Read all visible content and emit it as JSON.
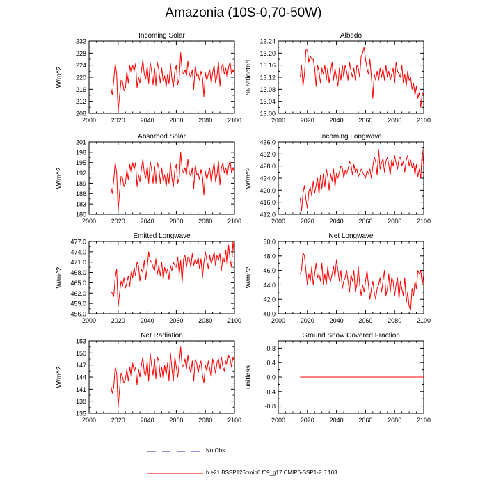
{
  "title": "Amazonia (10S-0,70-50W)",
  "legend": {
    "obs_label": "No Obs",
    "model_label": "b.e21.BSSP126cmip6.f09_g17.CMIP6-SSP1-2.6.103",
    "obs_color": "#2222aa",
    "model_color": "#ff0000"
  },
  "chart_data": [
    {
      "type": "line",
      "title": "Incoming Solar",
      "ylabel": "W/m^2",
      "xlim": [
        2000,
        2100
      ],
      "ylim": [
        208,
        232
      ],
      "xticks": [
        "2000",
        "2020",
        "2040",
        "2060",
        "2080",
        "2100"
      ],
      "yticks": [
        "232",
        "228",
        "224",
        "220",
        "216",
        "212",
        "208"
      ],
      "x_start": 2015,
      "values": [
        216.5,
        214.2,
        219.0,
        224.5,
        221.0,
        208.5,
        214.0,
        219.0,
        218.5,
        215.5,
        216.5,
        222.0,
        218.0,
        223.8,
        221.5,
        224.0,
        222.0,
        224.5,
        216.5,
        220.0,
        218.0,
        222.0,
        225.8,
        221.0,
        219.5,
        223.5,
        217.8,
        225.0,
        222.0,
        217.5,
        223.0,
        217.2,
        225.0,
        222.5,
        218.0,
        223.0,
        218.5,
        220.5,
        216.8,
        221.0,
        217.8,
        224.5,
        219.5,
        216.8,
        222.0,
        224.0,
        217.5,
        219.5,
        228.2,
        222.0,
        221.0,
        222.5,
        220.5,
        225.5,
        221.0,
        220.0,
        222.5,
        216.0,
        224.0,
        220.5,
        221.0,
        219.0,
        222.0,
        220.0,
        213.5,
        221.5,
        219.0,
        221.0,
        222.5,
        218.0,
        221.5,
        224.0,
        218.0,
        220.5,
        225.0,
        217.0,
        223.0,
        224.5,
        221.0,
        223.0,
        219.8,
        223.5,
        225.0,
        221.0,
        222.5,
        221.0
      ]
    },
    {
      "type": "line",
      "title": "Albedo",
      "ylabel": "% reflected",
      "xlim": [
        2000,
        2100
      ],
      "ylim": [
        13.0,
        13.24
      ],
      "xticks": [
        "2000",
        "2020",
        "2040",
        "2060",
        "2080",
        "2100"
      ],
      "yticks": [
        "13.24",
        "13.20",
        "13.16",
        "13.12",
        "13.08",
        "13.04",
        "13.00"
      ],
      "x_start": 2015,
      "values": [
        13.12,
        13.16,
        13.09,
        13.13,
        13.21,
        13.21,
        13.17,
        13.19,
        13.18,
        13.18,
        13.15,
        13.09,
        13.16,
        13.14,
        13.1,
        13.15,
        13.13,
        13.16,
        13.11,
        13.15,
        13.1,
        13.14,
        13.17,
        13.11,
        13.15,
        13.12,
        13.09,
        13.15,
        13.11,
        13.16,
        13.12,
        13.16,
        13.14,
        13.11,
        13.17,
        13.14,
        13.12,
        13.15,
        13.11,
        13.16,
        13.15,
        13.12,
        13.19,
        13.2,
        13.22,
        13.18,
        13.15,
        13.13,
        13.18,
        13.12,
        13.05,
        13.13,
        13.11,
        13.14,
        13.11,
        13.15,
        13.12,
        13.15,
        13.11,
        13.16,
        13.12,
        13.14,
        13.11,
        13.13,
        13.15,
        13.1,
        13.17,
        13.14,
        13.13,
        13.12,
        13.16,
        13.1,
        13.13,
        13.09,
        13.14,
        13.11,
        13.12,
        13.08,
        13.1,
        13.06,
        13.09,
        13.05,
        13.07,
        13.02,
        13.07,
        13.06
      ]
    },
    {
      "type": "line",
      "title": "Absorbed Solar",
      "ylabel": "W/m^2",
      "xlim": [
        2000,
        2100
      ],
      "ylim": [
        180,
        201
      ],
      "xticks": [
        "2000",
        "2020",
        "2040",
        "2060",
        "2080",
        "2100"
      ],
      "yticks": [
        "201",
        "198",
        "195",
        "192",
        "189",
        "186",
        "183",
        "180"
      ],
      "x_start": 2015,
      "values": [
        188.0,
        186.0,
        190.0,
        195.0,
        192.0,
        181.0,
        186.5,
        191.0,
        190.5,
        188.0,
        189.0,
        193.0,
        190.0,
        194.5,
        192.0,
        195.0,
        193.0,
        195.0,
        188.0,
        191.5,
        189.5,
        193.0,
        196.0,
        192.0,
        190.5,
        194.0,
        189.0,
        195.5,
        193.0,
        189.0,
        194.0,
        189.0,
        195.0,
        193.5,
        189.0,
        193.5,
        189.5,
        191.5,
        188.0,
        192.0,
        189.0,
        195.0,
        190.5,
        188.0,
        193.0,
        194.5,
        189.0,
        190.5,
        198.0,
        193.0,
        192.0,
        193.5,
        191.5,
        196.0,
        192.0,
        191.0,
        193.5,
        187.5,
        194.5,
        191.5,
        192.0,
        190.0,
        193.0,
        191.0,
        185.5,
        192.5,
        190.0,
        192.0,
        193.5,
        189.0,
        192.5,
        195.0,
        189.5,
        191.5,
        195.5,
        188.5,
        193.5,
        195.0,
        192.0,
        193.5,
        191.0,
        194.0,
        195.5,
        192.0,
        193.5,
        192.0
      ]
    },
    {
      "type": "line",
      "title": "Incoming Longwave",
      "ylabel": "W/m^2",
      "xlim": [
        2000,
        2100
      ],
      "ylim": [
        412.0,
        436.0
      ],
      "xticks": [
        "2000",
        "2020",
        "2040",
        "2060",
        "2080",
        "2100"
      ],
      "yticks": [
        "436.0",
        "432.0",
        "428.0",
        "424.0",
        "420.0",
        "416.0",
        "412.0"
      ],
      "x_start": 2015,
      "values": [
        417.5,
        413.0,
        419.0,
        421.5,
        417.0,
        414.0,
        419.5,
        421.0,
        418.0,
        423.0,
        419.0,
        421.5,
        424.0,
        418.5,
        425.0,
        420.5,
        425.5,
        421.0,
        427.0,
        424.5,
        420.0,
        425.5,
        423.0,
        427.0,
        421.0,
        425.5,
        424.0,
        426.0,
        428.0,
        427.5,
        424.0,
        426.5,
        425.5,
        427.0,
        429.5,
        428.5,
        425.0,
        428.5,
        426.0,
        427.0,
        424.5,
        425.5,
        427.0,
        426.0,
        425.0,
        424.0,
        426.5,
        425.5,
        427.0,
        424.0,
        428.0,
        431.0,
        429.5,
        425.0,
        433.5,
        427.0,
        429.0,
        430.5,
        426.0,
        429.5,
        431.0,
        428.5,
        425.0,
        430.0,
        428.0,
        431.5,
        429.0,
        427.0,
        430.5,
        431.0,
        428.0,
        429.5,
        426.0,
        430.0,
        431.5,
        428.0,
        430.0,
        427.5,
        429.0,
        425.0,
        428.5,
        424.5,
        427.0,
        424.0,
        433.5,
        428.0
      ]
    },
    {
      "type": "line",
      "title": "Emitted Longwave",
      "ylabel": "W/m^2",
      "xlim": [
        2000,
        2100
      ],
      "ylim": [
        456.0,
        477.0
      ],
      "xticks": [
        "2000",
        "2020",
        "2040",
        "2060",
        "2080",
        "2100"
      ],
      "yticks": [
        "477.0",
        "474.0",
        "471.0",
        "468.0",
        "465.0",
        "462.0",
        "459.0",
        "456.0"
      ],
      "x_start": 2015,
      "values": [
        462.5,
        462.0,
        461.0,
        466.5,
        469.0,
        458.0,
        462.0,
        465.5,
        464.0,
        466.5,
        463.5,
        465.0,
        467.0,
        464.0,
        468.5,
        466.5,
        469.5,
        467.0,
        471.0,
        470.0,
        465.5,
        469.0,
        468.0,
        471.5,
        466.0,
        469.5,
        474.0,
        471.5,
        471.0,
        469.5,
        468.5,
        472.0,
        467.5,
        470.0,
        467.0,
        471.0,
        466.0,
        469.5,
        467.5,
        469.0,
        466.0,
        470.0,
        468.5,
        471.0,
        470.0,
        469.5,
        472.5,
        467.5,
        471.5,
        465.0,
        472.0,
        473.0,
        469.5,
        472.5,
        472.0,
        469.5,
        473.5,
        470.0,
        472.0,
        470.5,
        472.5,
        469.0,
        472.0,
        466.5,
        471.0,
        474.0,
        471.5,
        469.0,
        473.0,
        470.5,
        472.0,
        474.0,
        470.0,
        473.0,
        471.5,
        473.5,
        468.5,
        472.5,
        471.0,
        474.5,
        470.0,
        476.0,
        471.5,
        469.5,
        477.0,
        472.5
      ]
    },
    {
      "type": "line",
      "title": "Net Longwave",
      "ylabel": "W/m^2",
      "xlim": [
        2000,
        2100
      ],
      "ylim": [
        40.0,
        50.0
      ],
      "xticks": [
        "2000",
        "2020",
        "2040",
        "2060",
        "2080",
        "2100"
      ],
      "yticks": [
        "50.0",
        "48.0",
        "46.0",
        "44.0",
        "42.0",
        "40.0"
      ],
      "x_start": 2015,
      "values": [
        45.5,
        46.0,
        48.5,
        48.0,
        46.0,
        44.0,
        45.5,
        44.5,
        46.5,
        44.0,
        45.5,
        47.0,
        45.0,
        45.5,
        44.5,
        47.0,
        44.0,
        45.5,
        44.0,
        46.5,
        45.0,
        44.5,
        45.5,
        46.5,
        45.0,
        47.5,
        46.0,
        44.5,
        46.0,
        43.5,
        44.5,
        45.0,
        46.0,
        44.5,
        43.0,
        45.5,
        44.5,
        46.0,
        43.0,
        44.0,
        46.5,
        44.0,
        42.5,
        44.0,
        43.0,
        44.5,
        46.0,
        44.0,
        42.0,
        43.5,
        44.5,
        43.0,
        42.0,
        43.5,
        44.0,
        45.0,
        43.0,
        44.5,
        46.0,
        42.5,
        43.5,
        45.5,
        43.0,
        45.0,
        44.5,
        42.5,
        44.0,
        45.0,
        42.0,
        44.5,
        43.5,
        42.5,
        45.0,
        41.5,
        43.0,
        41.0,
        40.5,
        43.5,
        42.5,
        44.5,
        43.5,
        46.0,
        45.5,
        46.0,
        44.0,
        45.5
      ]
    },
    {
      "type": "line",
      "title": "Net Radiation",
      "ylabel": "W/m^2",
      "xlim": [
        2000,
        2100
      ],
      "ylim": [
        135,
        153
      ],
      "xticks": [
        "2000",
        "2020",
        "2040",
        "2060",
        "2080",
        "2100"
      ],
      "yticks": [
        "153",
        "150",
        "147",
        "144",
        "141",
        "138",
        "135"
      ],
      "x_start": 2015,
      "values": [
        142.0,
        140.0,
        141.5,
        146.5,
        145.0,
        136.5,
        141.0,
        145.0,
        144.0,
        142.5,
        143.5,
        146.0,
        143.0,
        146.5,
        144.0,
        147.5,
        145.5,
        146.5,
        142.0,
        146.0,
        144.0,
        147.0,
        149.0,
        145.0,
        144.5,
        148.0,
        143.0,
        150.0,
        147.0,
        144.5,
        148.5,
        143.5,
        149.0,
        148.0,
        144.0,
        146.5,
        143.5,
        147.0,
        144.5,
        147.5,
        143.0,
        150.0,
        146.0,
        143.0,
        149.0,
        146.5,
        144.0,
        147.5,
        151.5,
        146.5,
        147.0,
        148.5,
        146.0,
        149.5,
        146.5,
        145.0,
        148.0,
        143.0,
        148.5,
        147.5,
        145.0,
        147.0,
        148.0,
        144.5,
        142.5,
        147.0,
        145.5,
        148.0,
        146.0,
        144.0,
        148.5,
        147.0,
        145.0,
        147.5,
        148.5,
        146.0,
        149.0,
        146.5,
        145.5,
        148.0,
        147.0,
        149.5,
        148.5,
        146.5,
        149.0,
        148.0
      ]
    },
    {
      "type": "line",
      "title": "Ground Snow Covered Fraction",
      "ylabel": "unitless",
      "xlim": [
        2000,
        2100
      ],
      "ylim": [
        -1.0,
        1.0
      ],
      "xticks": [
        "2000",
        "2020",
        "2040",
        "2060",
        "2080",
        "2100"
      ],
      "yticks": [
        "0.8",
        "0.4",
        "0.0",
        "-0.4",
        "-0.8"
      ],
      "ytick_values": [
        0.8,
        0.4,
        0.0,
        -0.4,
        -0.8
      ],
      "x_start": 2015,
      "values": [
        0,
        0,
        0,
        0,
        0,
        0,
        0,
        0,
        0,
        0,
        0,
        0,
        0,
        0,
        0,
        0,
        0,
        0,
        0,
        0,
        0,
        0,
        0,
        0,
        0,
        0,
        0,
        0,
        0,
        0,
        0,
        0,
        0,
        0,
        0,
        0,
        0,
        0,
        0,
        0,
        0,
        0,
        0,
        0,
        0,
        0,
        0,
        0,
        0,
        0,
        0,
        0,
        0,
        0,
        0,
        0,
        0,
        0,
        0,
        0,
        0,
        0,
        0,
        0,
        0,
        0,
        0,
        0,
        0,
        0,
        0,
        0,
        0,
        0,
        0,
        0,
        0,
        0,
        0,
        0,
        0,
        0,
        0,
        0,
        0,
        0
      ]
    }
  ]
}
